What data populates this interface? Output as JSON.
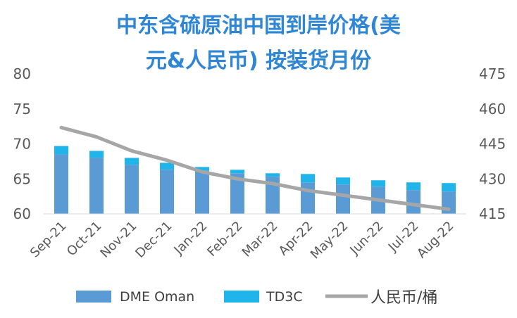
{
  "chart_data": {
    "type": "bar",
    "title_lines": [
      "中东含硫原油中国到岸价格(美",
      "元&人民币) 按装货月份"
    ],
    "categories": [
      "Sep-21",
      "Oct-21",
      "Nov-21",
      "Dec-21",
      "Jan-22",
      "Feb-22",
      "Mar-22",
      "Apr-22",
      "May-22",
      "Jun-22",
      "Jul-22",
      "Aug-22"
    ],
    "series": [
      {
        "name": "DME Oman",
        "kind": "stacked-bar",
        "axis": "left",
        "color": "#5b9bd5",
        "values": [
          68.5,
          68.0,
          67.0,
          66.3,
          66.2,
          65.8,
          65.3,
          64.5,
          64.2,
          63.9,
          63.4,
          63.2
        ]
      },
      {
        "name": "TD3C",
        "kind": "stacked-bar",
        "axis": "left",
        "color": "#1fb5ea",
        "values": [
          1.2,
          1.0,
          1.0,
          1.0,
          0.5,
          0.5,
          0.5,
          1.2,
          1.0,
          0.9,
          1.1,
          1.2
        ]
      },
      {
        "name": "人民币/桶",
        "kind": "line",
        "axis": "right",
        "color": "#a6a6a6",
        "values": [
          452,
          448,
          442,
          438,
          433,
          430,
          428,
          425,
          423,
          421,
          419,
          417
        ]
      }
    ],
    "y_left": {
      "min": 60,
      "max": 80,
      "ticks": [
        60,
        65,
        70,
        75,
        80
      ]
    },
    "y_right": {
      "min": 415,
      "max": 475,
      "ticks": [
        415,
        430,
        445,
        460,
        475
      ]
    },
    "grid": false,
    "legend_position": "bottom"
  }
}
